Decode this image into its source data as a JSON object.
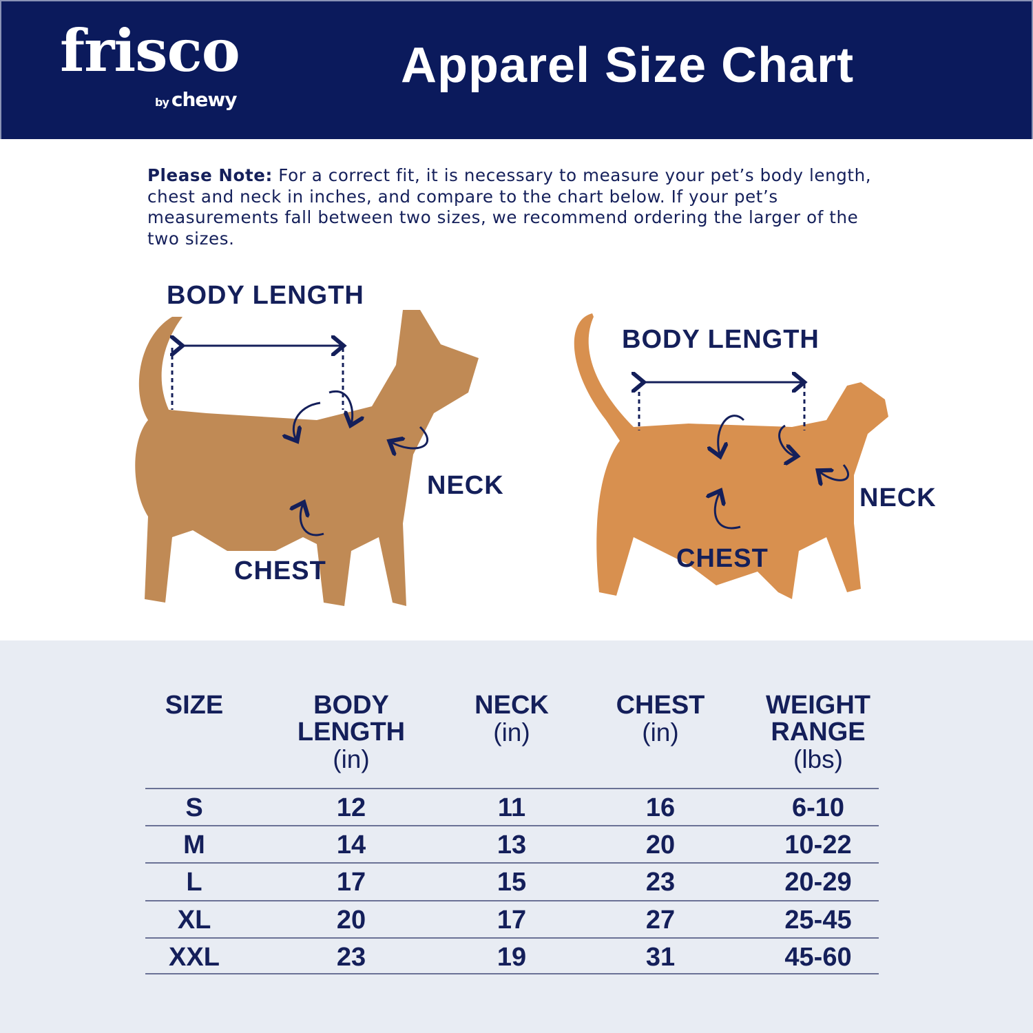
{
  "header": {
    "brand": "frisco",
    "brand_sub_by": "by",
    "brand_sub": "chewy",
    "title": "Apparel Size Chart",
    "background": "#0b1a5c"
  },
  "note": {
    "label": "Please Note:",
    "text": " For a correct fit, it is necessary to measure your pet’s body length, chest and neck in inches, and compare to the chart below. If your pet’s measurements fall between two sizes, we recommend ordering the larger of the two sizes."
  },
  "dog": {
    "body_length": "BODY LENGTH",
    "neck": "NECK",
    "chest": "CHEST"
  },
  "cat": {
    "body_length": "BODY LENGTH",
    "neck": "NECK",
    "chest": "CHEST"
  },
  "table": {
    "headers": [
      {
        "title": "SIZE",
        "unit": ""
      },
      {
        "title": "BODY LENGTH",
        "unit": "(in)"
      },
      {
        "title": "NECK",
        "unit": "(in)"
      },
      {
        "title": "CHEST",
        "unit": "(in)"
      },
      {
        "title": "WEIGHT RANGE",
        "unit": "(lbs)"
      }
    ],
    "rows": [
      [
        "S",
        "12",
        "11",
        "16",
        "6-10"
      ],
      [
        "M",
        "14",
        "13",
        "20",
        "10-22"
      ],
      [
        "L",
        "17",
        "15",
        "23",
        "20-29"
      ],
      [
        "XL",
        "20",
        "17",
        "27",
        "25-45"
      ],
      [
        "XXL",
        "23",
        "19",
        "31",
        "45-60"
      ]
    ]
  },
  "colors": {
    "navy": "#141f5a",
    "table_bg": "#e8ecf3"
  }
}
